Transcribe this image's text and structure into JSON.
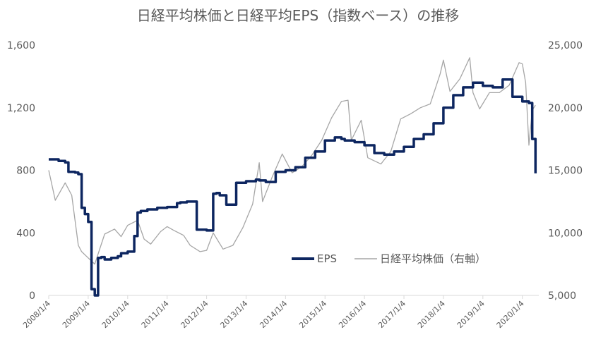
{
  "chart_data": {
    "type": "line",
    "title": "日経平均株価と日経平均EPS（指数ベース）の推移",
    "x_ticks": [
      "2008/1/4",
      "2009/1/4",
      "2010/1/4",
      "2011/1/4",
      "2012/1/4",
      "2013/1/4",
      "2014/1/4",
      "2015/1/4",
      "2016/1/4",
      "2017/1/4",
      "2018/1/4",
      "2019/1/4",
      "2020/1/4"
    ],
    "y_left": {
      "ylim": [
        0,
        1600
      ],
      "ticks": [
        "0",
        "400",
        "800",
        "1,200",
        "1,600"
      ]
    },
    "y_right": {
      "ylim": [
        5000,
        25000
      ],
      "ticks": [
        "5,000",
        "10,000",
        "15,000",
        "20,000",
        "25,000"
      ]
    },
    "grid": false,
    "legend_position": "bottom-right",
    "colors": {
      "eps": "#0d2660",
      "nikkei": "#a6a6a6"
    },
    "series": [
      {
        "name": "EPS",
        "axis": "left",
        "x": [
          "2008-01",
          "2008-04",
          "2008-06",
          "2008-07",
          "2008-09",
          "2008-10",
          "2008-11",
          "2008-12",
          "2009-01",
          "2009-02",
          "2009-03",
          "2009-04",
          "2009-05",
          "2009-06",
          "2009-08",
          "2009-10",
          "2009-11",
          "2010-01",
          "2010-03",
          "2010-04",
          "2010-05",
          "2010-07",
          "2010-10",
          "2011-01",
          "2011-04",
          "2011-05",
          "2011-07",
          "2011-10",
          "2012-01",
          "2012-03",
          "2012-04",
          "2012-05",
          "2012-07",
          "2012-10",
          "2013-01",
          "2013-04",
          "2013-05",
          "2013-07",
          "2013-10",
          "2014-01",
          "2014-04",
          "2014-07",
          "2014-10",
          "2015-01",
          "2015-04",
          "2015-06",
          "2015-07",
          "2015-10",
          "2016-01",
          "2016-04",
          "2016-07",
          "2016-10",
          "2017-01",
          "2017-04",
          "2017-07",
          "2017-10",
          "2018-01",
          "2018-04",
          "2018-07",
          "2018-10",
          "2019-01",
          "2019-04",
          "2019-07",
          "2019-10",
          "2020-01",
          "2020-03",
          "2020-04",
          "2020-05"
        ],
        "values": [
          870,
          860,
          850,
          790,
          785,
          775,
          560,
          520,
          470,
          40,
          0,
          240,
          245,
          230,
          240,
          250,
          270,
          280,
          380,
          530,
          540,
          550,
          560,
          565,
          590,
          595,
          600,
          420,
          415,
          650,
          655,
          640,
          580,
          720,
          730,
          740,
          735,
          725,
          790,
          800,
          820,
          880,
          920,
          990,
          1010,
          1000,
          990,
          980,
          960,
          910,
          900,
          920,
          950,
          1000,
          1030,
          1100,
          1200,
          1280,
          1330,
          1360,
          1340,
          1330,
          1380,
          1270,
          1240,
          1230,
          1000,
          780
        ]
      },
      {
        "name": "日経平均株価（右軸）",
        "axis": "right",
        "x": [
          "2008-01",
          "2008-03",
          "2008-06",
          "2008-08",
          "2008-10",
          "2008-11",
          "2009-01",
          "2009-03",
          "2009-06",
          "2009-09",
          "2009-11",
          "2010-01",
          "2010-04",
          "2010-06",
          "2010-08",
          "2010-11",
          "2011-01",
          "2011-03",
          "2011-06",
          "2011-08",
          "2011-11",
          "2012-01",
          "2012-03",
          "2012-06",
          "2012-09",
          "2012-12",
          "2013-03",
          "2013-05",
          "2013-06",
          "2013-09",
          "2013-12",
          "2014-03",
          "2014-06",
          "2014-09",
          "2014-12",
          "2015-03",
          "2015-06",
          "2015-08",
          "2015-09",
          "2015-12",
          "2016-02",
          "2016-06",
          "2016-09",
          "2016-12",
          "2017-03",
          "2017-06",
          "2017-09",
          "2017-12",
          "2018-01",
          "2018-03",
          "2018-06",
          "2018-09",
          "2018-10",
          "2018-12",
          "2019-03",
          "2019-06",
          "2019-09",
          "2019-12",
          "2020-01",
          "2020-02",
          "2020-03",
          "2020-04",
          "2020-05"
        ],
        "values": [
          15000,
          12600,
          14000,
          13000,
          9000,
          8500,
          8000,
          7500,
          9900,
          10300,
          9700,
          10600,
          11000,
          9500,
          9100,
          10100,
          10500,
          10200,
          9800,
          9000,
          8500,
          8600,
          10000,
          8700,
          9000,
          10400,
          12300,
          15600,
          12500,
          14500,
          16300,
          14800,
          15300,
          16200,
          17400,
          19200,
          20500,
          20600,
          17400,
          19000,
          16000,
          15500,
          16500,
          19100,
          19500,
          20000,
          20300,
          22700,
          23800,
          21300,
          22300,
          24000,
          21200,
          19900,
          21200,
          21200,
          21800,
          23600,
          23500,
          22000,
          17000,
          19800,
          20200
        ]
      }
    ]
  }
}
